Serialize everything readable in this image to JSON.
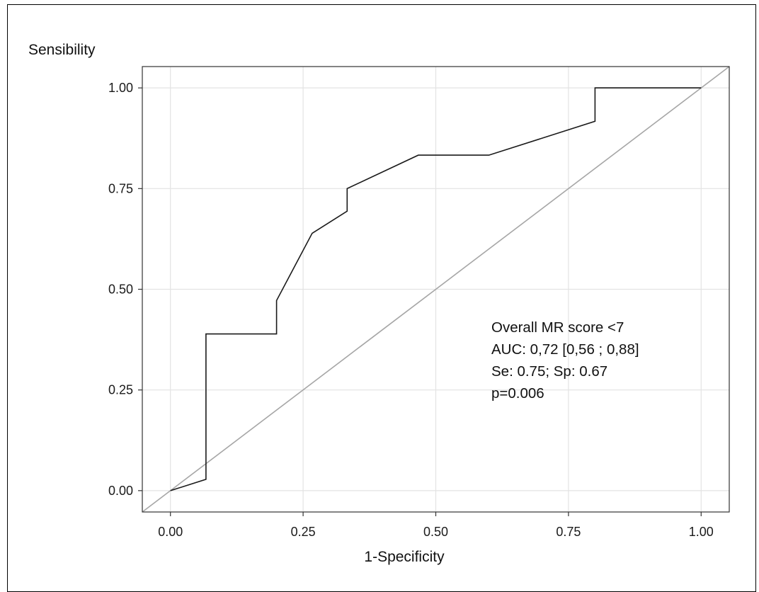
{
  "chart_data": {
    "type": "line",
    "title": "",
    "xlabel": "1-Specificity",
    "ylabel": "Sensibility",
    "xlim": [
      -0.053,
      1.053
    ],
    "ylim": [
      -0.053,
      1.053
    ],
    "grid": true,
    "x_ticks": [
      "0.00",
      "0.25",
      "0.50",
      "0.75",
      "1.00"
    ],
    "y_ticks": [
      "0.00",
      "0.25",
      "0.50",
      "0.75",
      "1.00"
    ],
    "series": [
      {
        "name": "",
        "color": "#1a1a1a",
        "x": [
          0.0,
          0.067,
          0.067,
          0.2,
          0.2,
          0.267,
          0.333,
          0.333,
          0.467,
          0.6,
          0.8,
          0.8,
          1.0
        ],
        "y": [
          0.0,
          0.028,
          0.389,
          0.389,
          0.472,
          0.639,
          0.694,
          0.75,
          0.833,
          0.833,
          0.917,
          1.0,
          1.0
        ]
      }
    ],
    "reference_line": {
      "x": [
        -0.053,
        1.053
      ],
      "y": [
        -0.053,
        1.053
      ],
      "color": "#a6a6a6"
    },
    "annotations": [
      "Overall MR score <7",
      "AUC: 0,72 [0,56 ; 0,88]",
      "Se: 0.75; Sp: 0.67",
      "p=0.006"
    ]
  }
}
